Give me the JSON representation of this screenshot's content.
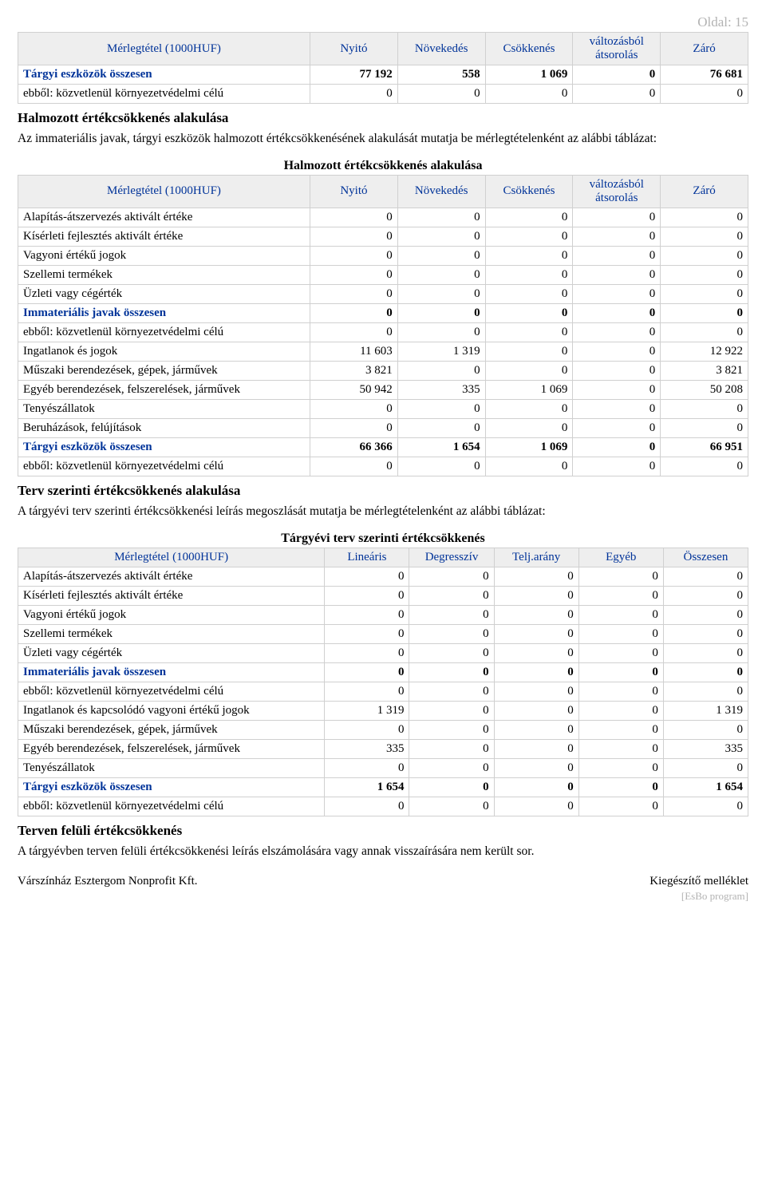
{
  "page_label": "Oldal: 15",
  "colors": {
    "header_bg": "#eeeeee",
    "header_text": "#003399",
    "border": "#d0d0d0",
    "muted": "#b3b3b3"
  },
  "table1": {
    "columns": [
      "Mérlegtétel (1000HUF)",
      "Nyitó",
      "Növekedés",
      "Csökkenés",
      "változásból átsorolás",
      "Záró"
    ],
    "rows": [
      {
        "label": "Tárgyi eszközök összesen",
        "vals": [
          "77 192",
          "558",
          "1 069",
          "0",
          "76 681"
        ],
        "bold": true
      },
      {
        "label": "ebből: közvetlenül környezetvédelmi célú",
        "vals": [
          "0",
          "0",
          "0",
          "0",
          "0"
        ],
        "bold": false
      }
    ]
  },
  "section1": {
    "heading": "Halmozott értékcsökkenés alakulása",
    "text": "Az immateriális javak, tárgyi eszközök halmozott értékcsökkenésének alakulását mutatja be mérlegtételenként az alábbi táblázat:"
  },
  "table2": {
    "caption": "Halmozott értékcsökkenés alakulása",
    "columns": [
      "Mérlegtétel (1000HUF)",
      "Nyitó",
      "Növekedés",
      "Csökkenés",
      "változásból átsorolás",
      "Záró"
    ],
    "rows": [
      {
        "label": "Alapítás-átszervezés aktivált értéke",
        "vals": [
          "0",
          "0",
          "0",
          "0",
          "0"
        ],
        "bold": false
      },
      {
        "label": "Kísérleti fejlesztés aktivált értéke",
        "vals": [
          "0",
          "0",
          "0",
          "0",
          "0"
        ],
        "bold": false
      },
      {
        "label": "Vagyoni értékű jogok",
        "vals": [
          "0",
          "0",
          "0",
          "0",
          "0"
        ],
        "bold": false
      },
      {
        "label": "Szellemi termékek",
        "vals": [
          "0",
          "0",
          "0",
          "0",
          "0"
        ],
        "bold": false
      },
      {
        "label": "Üzleti vagy cégérték",
        "vals": [
          "0",
          "0",
          "0",
          "0",
          "0"
        ],
        "bold": false
      },
      {
        "label": "Immateriális javak összesen",
        "vals": [
          "0",
          "0",
          "0",
          "0",
          "0"
        ],
        "bold": true
      },
      {
        "label": "ebből: közvetlenül környezetvédelmi célú",
        "vals": [
          "0",
          "0",
          "0",
          "0",
          "0"
        ],
        "bold": false
      },
      {
        "label": "Ingatlanok és jogok",
        "vals": [
          "11 603",
          "1 319",
          "0",
          "0",
          "12 922"
        ],
        "bold": false
      },
      {
        "label": "Műszaki berendezések, gépek, járművek",
        "vals": [
          "3 821",
          "0",
          "0",
          "0",
          "3 821"
        ],
        "bold": false
      },
      {
        "label": "Egyéb berendezések, felszerelések, járművek",
        "vals": [
          "50 942",
          "335",
          "1 069",
          "0",
          "50 208"
        ],
        "bold": false
      },
      {
        "label": "Tenyészállatok",
        "vals": [
          "0",
          "0",
          "0",
          "0",
          "0"
        ],
        "bold": false
      },
      {
        "label": "Beruházások, felújítások",
        "vals": [
          "0",
          "0",
          "0",
          "0",
          "0"
        ],
        "bold": false
      },
      {
        "label": "Tárgyi eszközök összesen",
        "vals": [
          "66 366",
          "1 654",
          "1 069",
          "0",
          "66 951"
        ],
        "bold": true
      },
      {
        "label": "ebből: közvetlenül környezetvédelmi célú",
        "vals": [
          "0",
          "0",
          "0",
          "0",
          "0"
        ],
        "bold": false
      }
    ]
  },
  "section2": {
    "heading": "Terv szerinti értékcsökkenés alakulása",
    "text": "A tárgyévi terv szerinti értékcsökkenési leírás megoszlását mutatja be mérlegtételenként az alábbi táblázat:"
  },
  "table3": {
    "caption": "Tárgyévi terv szerinti értékcsökkenés",
    "columns": [
      "Mérlegtétel (1000HUF)",
      "Lineáris",
      "Degresszív",
      "Telj.arány",
      "Egyéb",
      "Összesen"
    ],
    "rows": [
      {
        "label": "Alapítás-átszervezés aktivált értéke",
        "vals": [
          "0",
          "0",
          "0",
          "0",
          "0"
        ],
        "bold": false
      },
      {
        "label": "Kísérleti fejlesztés aktivált értéke",
        "vals": [
          "0",
          "0",
          "0",
          "0",
          "0"
        ],
        "bold": false
      },
      {
        "label": "Vagyoni értékű jogok",
        "vals": [
          "0",
          "0",
          "0",
          "0",
          "0"
        ],
        "bold": false
      },
      {
        "label": "Szellemi termékek",
        "vals": [
          "0",
          "0",
          "0",
          "0",
          "0"
        ],
        "bold": false
      },
      {
        "label": "Üzleti vagy cégérték",
        "vals": [
          "0",
          "0",
          "0",
          "0",
          "0"
        ],
        "bold": false
      },
      {
        "label": "Immateriális javak összesen",
        "vals": [
          "0",
          "0",
          "0",
          "0",
          "0"
        ],
        "bold": true
      },
      {
        "label": "ebből: közvetlenül környezetvédelmi célú",
        "vals": [
          "0",
          "0",
          "0",
          "0",
          "0"
        ],
        "bold": false
      },
      {
        "label": "Ingatlanok és kapcsolódó vagyoni értékű jogok",
        "vals": [
          "1 319",
          "0",
          "0",
          "0",
          "1 319"
        ],
        "bold": false
      },
      {
        "label": "Műszaki berendezések, gépek, járművek",
        "vals": [
          "0",
          "0",
          "0",
          "0",
          "0"
        ],
        "bold": false
      },
      {
        "label": "Egyéb berendezések, felszerelések, járművek",
        "vals": [
          "335",
          "0",
          "0",
          "0",
          "335"
        ],
        "bold": false
      },
      {
        "label": "Tenyészállatok",
        "vals": [
          "0",
          "0",
          "0",
          "0",
          "0"
        ],
        "bold": false
      },
      {
        "label": "Tárgyi eszközök összesen",
        "vals": [
          "1 654",
          "0",
          "0",
          "0",
          "1 654"
        ],
        "bold": true
      },
      {
        "label": "ebből: közvetlenül környezetvédelmi célú",
        "vals": [
          "0",
          "0",
          "0",
          "0",
          "0"
        ],
        "bold": false
      }
    ]
  },
  "section3": {
    "heading": "Terven felüli értékcsökkenés",
    "text": "A tárgyévben terven felüli értékcsökkenési leírás elszámolására vagy annak visszaírására nem került sor."
  },
  "footer": {
    "left": "Várszínház Esztergom Nonprofit Kft.",
    "right": "Kiegészítő melléklet",
    "program": "[EsBo program]"
  },
  "colwidths_t12": [
    "40%",
    "12%",
    "12%",
    "12%",
    "12%",
    "12%"
  ],
  "colwidths_t3": [
    "42%",
    "11.6%",
    "11.6%",
    "11.6%",
    "11.6%",
    "11.6%"
  ]
}
